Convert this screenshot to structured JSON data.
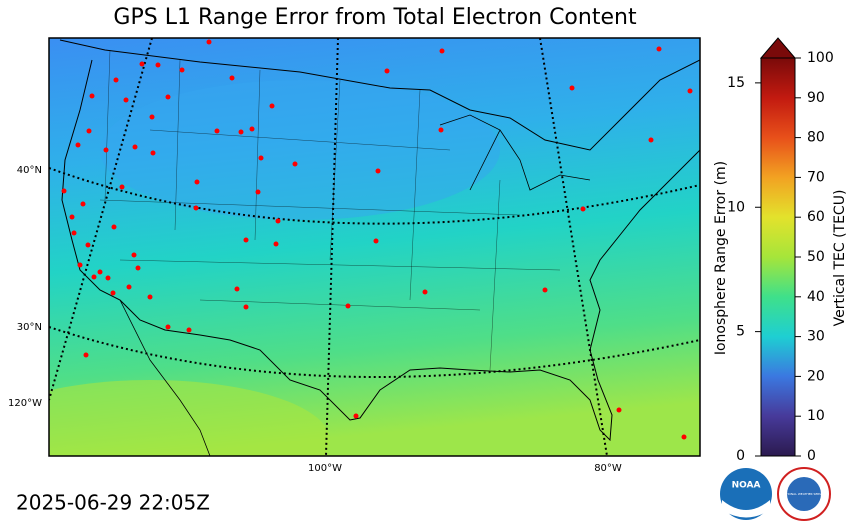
{
  "title": "GPS L1 Range Error from Total Electron Content",
  "timestamp": "2025-06-29 22:05Z",
  "map": {
    "lat_labels": [
      "40°N",
      "30°N"
    ],
    "lon_labels": [
      "120°W",
      "100°W",
      "80°W"
    ]
  },
  "colorbar": {
    "label": "Ionosphere Range Error (m)",
    "ylim": [
      0,
      16
    ],
    "yticks": [
      0,
      5,
      10,
      15
    ],
    "label2": "Vertical TEC (TECU)",
    "y2lim": [
      0,
      100
    ],
    "y2ticks": [
      0,
      10,
      20,
      30,
      40,
      50,
      60,
      70,
      80,
      90,
      100
    ]
  },
  "logos": [
    "NOAA",
    "NATIONAL WEATHER SERVICE"
  ]
}
